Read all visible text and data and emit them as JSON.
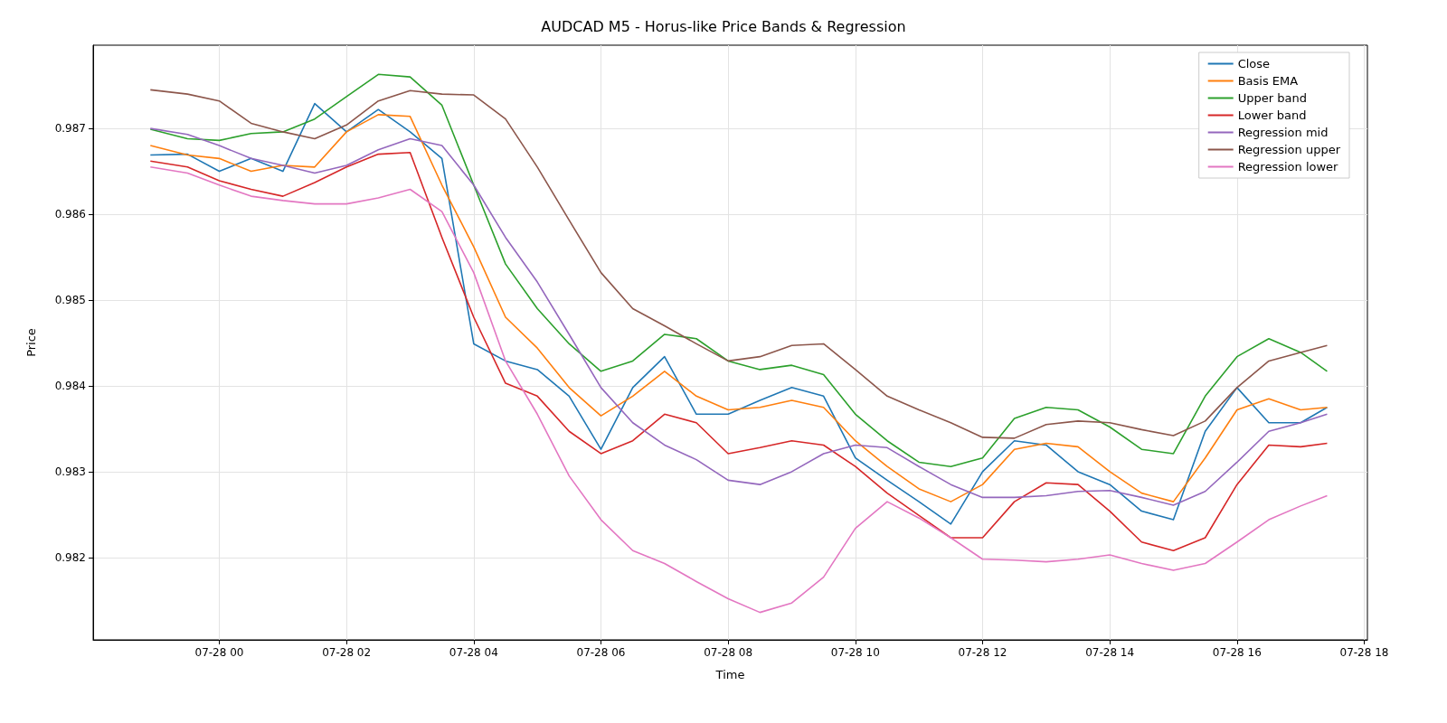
{
  "chart_data": {
    "type": "line",
    "title": "AUDCAD M5 - Horus-like Price Bands & Regression",
    "xlabel": "Time",
    "ylabel": "Price",
    "x": [
      "--07-27T22:55",
      "--07-27T23:30",
      "--07-28T00:00",
      "--07-28T00:30",
      "--07-28T01:00",
      "--07-28T01:30",
      "--07-28T02:00",
      "--07-28T02:30",
      "--07-28T03:00",
      "--07-28T03:30",
      "--07-28T04:00",
      "--07-28T04:30",
      "--07-28T05:00",
      "--07-28T05:30",
      "--07-28T06:00",
      "--07-28T06:30",
      "--07-28T07:00",
      "--07-28T07:30",
      "--07-28T08:00",
      "--07-28T08:30",
      "--07-28T09:00",
      "--07-28T09:30",
      "--07-28T10:00",
      "--07-28T10:30",
      "--07-28T11:00",
      "--07-28T11:30",
      "--07-28T12:00",
      "--07-28T12:30",
      "--07-28T13:00",
      "--07-28T13:30",
      "--07-28T14:00",
      "--07-28T14:30",
      "--07-28T15:00",
      "--07-28T15:30",
      "--07-28T16:00",
      "--07-28T16:30",
      "--07-28T17:00",
      "--07-28T17:25"
    ],
    "series": [
      {
        "name": "Close",
        "color": "#1f77b4",
        "values": [
          0.98669,
          0.9867,
          0.9865,
          0.98665,
          0.9865,
          0.98729,
          0.98696,
          0.98722,
          0.98696,
          0.98665,
          0.98449,
          0.98429,
          0.98419,
          0.98388,
          0.98326,
          0.98398,
          0.98434,
          0.98367,
          0.98367,
          0.98383,
          0.98398,
          0.98388,
          0.98316,
          0.9829,
          0.98265,
          0.98239,
          0.983,
          0.98336,
          0.98331,
          0.983,
          0.98285,
          0.98254,
          0.98244,
          0.98347,
          0.98398,
          0.98357,
          0.98357,
          0.98375
        ]
      },
      {
        "name": "Basis EMA",
        "color": "#ff7f0e",
        "values": [
          0.9868,
          0.98669,
          0.98665,
          0.9865,
          0.98657,
          0.98655,
          0.98696,
          0.98716,
          0.98714,
          0.98634,
          0.98562,
          0.9848,
          0.98444,
          0.98398,
          0.98365,
          0.98388,
          0.98417,
          0.98388,
          0.98372,
          0.98375,
          0.98383,
          0.98375,
          0.98336,
          0.98306,
          0.9828,
          0.98265,
          0.98285,
          0.98326,
          0.98333,
          0.98329,
          0.983,
          0.98275,
          0.98265,
          0.98316,
          0.98372,
          0.98385,
          0.98372,
          0.98375
        ]
      },
      {
        "name": "Upper band",
        "color": "#2ca02c",
        "values": [
          0.98699,
          0.98688,
          0.98686,
          0.98694,
          0.98696,
          0.98711,
          0.98737,
          0.98763,
          0.9876,
          0.98727,
          0.98634,
          0.98542,
          0.9849,
          0.98449,
          0.98417,
          0.98429,
          0.9846,
          0.98455,
          0.98429,
          0.98419,
          0.98424,
          0.98413,
          0.98367,
          0.98336,
          0.98311,
          0.98306,
          0.98316,
          0.98362,
          0.98375,
          0.98372,
          0.98352,
          0.98326,
          0.98321,
          0.98388,
          0.98434,
          0.98455,
          0.98439,
          0.98417
        ]
      },
      {
        "name": "Lower band",
        "color": "#d62728",
        "values": [
          0.98662,
          0.98655,
          0.98639,
          0.98629,
          0.98621,
          0.98637,
          0.98655,
          0.9867,
          0.98672,
          0.98573,
          0.9848,
          0.98403,
          0.98388,
          0.98347,
          0.98321,
          0.98336,
          0.98367,
          0.98357,
          0.98321,
          0.98328,
          0.98336,
          0.98331,
          0.98306,
          0.98275,
          0.98249,
          0.98223,
          0.98223,
          0.98265,
          0.98287,
          0.98285,
          0.98254,
          0.98218,
          0.98208,
          0.98223,
          0.98285,
          0.98331,
          0.98329,
          0.98333
        ]
      },
      {
        "name": "Regression mid",
        "color": "#9467bd",
        "values": [
          0.987,
          0.98693,
          0.9868,
          0.98665,
          0.98657,
          0.98648,
          0.98657,
          0.98675,
          0.98688,
          0.9868,
          0.98634,
          0.98573,
          0.98521,
          0.9846,
          0.98398,
          0.98357,
          0.98331,
          0.98314,
          0.9829,
          0.98285,
          0.983,
          0.98321,
          0.98331,
          0.98328,
          0.98306,
          0.98285,
          0.9827,
          0.9827,
          0.98272,
          0.98277,
          0.98278,
          0.9827,
          0.98261,
          0.98277,
          0.98311,
          0.98347,
          0.98357,
          0.98367
        ]
      },
      {
        "name": "Regression upper",
        "color": "#8c564b",
        "values": [
          0.98745,
          0.9874,
          0.98732,
          0.98706,
          0.98696,
          0.98688,
          0.98704,
          0.98732,
          0.98744,
          0.9874,
          0.98739,
          0.98711,
          0.98655,
          0.98593,
          0.98532,
          0.9849,
          0.9847,
          0.98449,
          0.98429,
          0.98434,
          0.98447,
          0.98449,
          0.98419,
          0.98388,
          0.98372,
          0.98357,
          0.9834,
          0.98339,
          0.98355,
          0.98359,
          0.98357,
          0.98349,
          0.98342,
          0.98359,
          0.98398,
          0.98429,
          0.98439,
          0.98447
        ]
      },
      {
        "name": "Regression lower",
        "color": "#e377c2",
        "values": [
          0.98655,
          0.98648,
          0.98634,
          0.98621,
          0.98616,
          0.98612,
          0.98612,
          0.98619,
          0.98629,
          0.98603,
          0.98532,
          0.98429,
          0.98367,
          0.98295,
          0.98244,
          0.98208,
          0.98193,
          0.98172,
          0.98152,
          0.98136,
          0.98147,
          0.98177,
          0.98234,
          0.98265,
          0.98246,
          0.98223,
          0.98198,
          0.98197,
          0.98195,
          0.98198,
          0.98203,
          0.98193,
          0.98185,
          0.98193,
          0.98218,
          0.98244,
          0.9826,
          0.98272
        ]
      }
    ],
    "xlim": [
      "--07-27T22:01",
      "--07-28T18:03"
    ],
    "xticks": [
      {
        "value": "--07-28T00:00",
        "label": "07-28 00"
      },
      {
        "value": "--07-28T02:00",
        "label": "07-28 02"
      },
      {
        "value": "--07-28T04:00",
        "label": "07-28 04"
      },
      {
        "value": "--07-28T06:00",
        "label": "07-28 06"
      },
      {
        "value": "--07-28T08:00",
        "label": "07-28 08"
      },
      {
        "value": "--07-28T10:00",
        "label": "07-28 10"
      },
      {
        "value": "--07-28T12:00",
        "label": "07-28 12"
      },
      {
        "value": "--07-28T14:00",
        "label": "07-28 14"
      },
      {
        "value": "--07-28T16:00",
        "label": "07-28 16"
      },
      {
        "value": "--07-28T18:00",
        "label": "07-28 18"
      }
    ],
    "ylim": [
      0.98104,
      0.98797
    ],
    "yticks": [
      0.982,
      0.983,
      0.984,
      0.985,
      0.986,
      0.987
    ],
    "grid": true,
    "legend": "top right",
    "marker": "none",
    "line_style": "solid"
  }
}
